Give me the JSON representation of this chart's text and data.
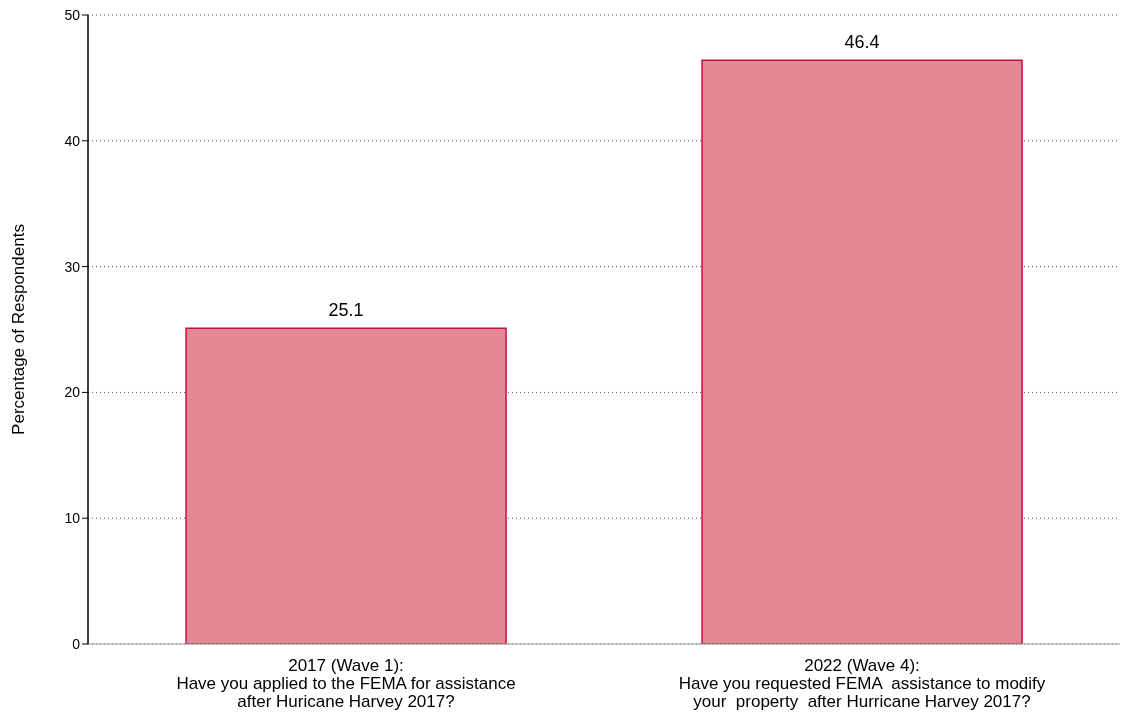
{
  "chart_data": {
    "type": "bar",
    "ylabel": "Percentage of Respondents",
    "categories": [
      "2017 (Wave 1):\nHave you applied to the FEMA for assistance\nafter Huricane Harvey 2017?",
      "2022 (Wave 4):\nHave you requested FEMA  assistance to modify\nyour  property  after Hurricane Harvey 2017?"
    ],
    "values": [
      25.1,
      46.4
    ],
    "color": "#e38895",
    "ylim": [
      0,
      50
    ],
    "yticks": [
      0,
      10,
      20,
      30,
      40,
      50
    ],
    "grid": "y",
    "data_labels": true
  }
}
